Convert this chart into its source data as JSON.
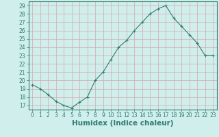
{
  "x": [
    0,
    1,
    2,
    3,
    4,
    5,
    6,
    7,
    8,
    9,
    10,
    11,
    12,
    13,
    14,
    15,
    16,
    17,
    18,
    19,
    20,
    21,
    22,
    23
  ],
  "y": [
    19.5,
    19.0,
    18.3,
    17.5,
    17.0,
    16.7,
    17.4,
    18.0,
    20.0,
    21.0,
    22.5,
    24.0,
    24.8,
    26.0,
    27.0,
    28.0,
    28.6,
    29.0,
    27.5,
    26.5,
    25.5,
    24.5,
    23.0,
    23.0
  ],
  "line_color": "#2e7d6e",
  "marker": "+",
  "bg_color": "#d0eeeb",
  "grid_color": "#d4a8b0",
  "xlabel": "Humidex (Indice chaleur)",
  "xlim": [
    -0.5,
    23.5
  ],
  "ylim": [
    16.5,
    29.5
  ],
  "yticks": [
    17,
    18,
    19,
    20,
    21,
    22,
    23,
    24,
    25,
    26,
    27,
    28,
    29
  ],
  "xticks": [
    0,
    1,
    2,
    3,
    4,
    5,
    6,
    7,
    8,
    9,
    10,
    11,
    12,
    13,
    14,
    15,
    16,
    17,
    18,
    19,
    20,
    21,
    22,
    23
  ],
  "tick_label_fontsize": 5.5,
  "xlabel_fontsize": 7.5,
  "xlabel_fontweight": "bold",
  "tick_color": "#2e7d6e",
  "spine_color": "#2e7d6e"
}
